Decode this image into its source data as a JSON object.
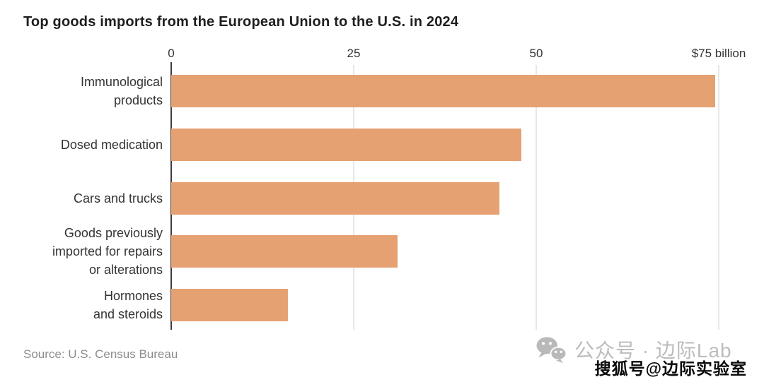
{
  "title": "Top goods imports from the European Union to the U.S. in 2024",
  "source": "Source: U.S. Census Bureau",
  "watermarks": {
    "wechat_icon": "wechat-icon",
    "wechat_label": "公众号 · 边际Lab",
    "sohu_label": "搜狐号@边际实验室"
  },
  "chart_data": {
    "type": "bar",
    "orientation": "horizontal",
    "title": "Top goods imports from the European Union to the U.S. in 2024",
    "categories": [
      "Immunological products",
      "Dosed medication",
      "Cars and trucks",
      "Goods previously imported for repairs or alterations",
      "Hormones and steroids"
    ],
    "category_lines": [
      [
        "Immunological",
        "products"
      ],
      [
        "Dosed medication"
      ],
      [
        "Cars and trucks"
      ],
      [
        "Goods previously",
        "imported for repairs",
        "or alterations"
      ],
      [
        "Hormones",
        "and steroids"
      ]
    ],
    "values": [
      74.5,
      48,
      45,
      31,
      16
    ],
    "unit": "$ billion",
    "xlim": [
      0,
      75
    ],
    "xticks": [
      0,
      25,
      50,
      75
    ],
    "xtick_labels": [
      "0",
      "25",
      "50",
      "$75 billion"
    ],
    "bar_color": "#e6a173",
    "grid": true,
    "legend": false,
    "source": "Source: U.S. Census Bureau"
  }
}
